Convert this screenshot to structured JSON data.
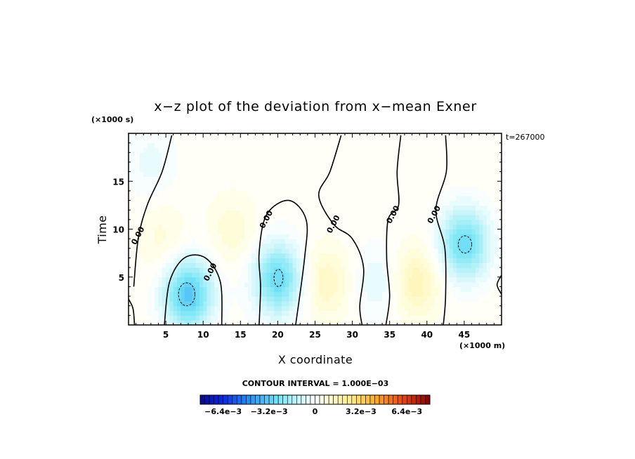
{
  "chart_data": {
    "type": "heatmap",
    "title": "x−z plot of the deviation from x−mean Exner",
    "xlabel": "X coordinate",
    "ylabel": "Time",
    "x_unit_label": "(×1000 m)",
    "y_unit_label": "(×1000 s)",
    "time_stamp": "t=267000",
    "xlim": [
      0,
      50
    ],
    "ylim": [
      0,
      20
    ],
    "x_ticks": [
      5,
      10,
      15,
      20,
      25,
      30,
      35,
      40,
      45
    ],
    "y_ticks": [
      5,
      10,
      15
    ],
    "contour_interval_text": "CONTOUR INTERVAL = 1.000E−03",
    "contour_label": "0.00",
    "colorbar": {
      "min": -0.008,
      "max": 0.008,
      "bins": 50,
      "tick_labels": [
        "−6.4e−3",
        "−3.2e−3",
        "0",
        "3.2e−3",
        "6.4e−3"
      ],
      "tick_values": [
        -0.0064,
        -0.0032,
        0,
        0.0032,
        0.0064
      ]
    },
    "features": [
      {
        "kind": "min",
        "x": 8,
        "y": 3.2,
        "value": -0.0035
      },
      {
        "kind": "min",
        "x": 20,
        "y": 4.8,
        "value": -0.003
      },
      {
        "kind": "min",
        "x": 45,
        "y": 8.5,
        "value": -0.003
      },
      {
        "kind": "min",
        "x": 33.5,
        "y": 4.5,
        "value": -0.0008
      },
      {
        "kind": "min",
        "x": 3,
        "y": 17,
        "value": -0.0006
      },
      {
        "kind": "max",
        "x": 26.5,
        "y": 4.5,
        "value": 0.0011
      },
      {
        "kind": "max",
        "x": 38.5,
        "y": 4.5,
        "value": 0.0014
      },
      {
        "kind": "max",
        "x": 14,
        "y": 10,
        "value": 0.0007
      },
      {
        "kind": "max",
        "x": 4.5,
        "y": 9,
        "value": 0.0006
      }
    ],
    "zero_contours": [
      {
        "points": [
          [
            5.8,
            19.8
          ],
          [
            4.5,
            16
          ],
          [
            2.5,
            12.5
          ],
          [
            1.3,
            9
          ],
          [
            0.7,
            4
          ]
        ],
        "label_at": [
          1.3,
          9.3
        ]
      },
      {
        "points": [
          [
            4.8,
            0
          ],
          [
            5.5,
            4.5
          ],
          [
            7.5,
            7
          ],
          [
            10.3,
            7
          ],
          [
            12.3,
            4.5
          ],
          [
            12.5,
            0
          ]
        ],
        "label_at": [
          11,
          5.5
        ]
      },
      {
        "points": [
          [
            17.5,
            0
          ],
          [
            17.7,
            4
          ],
          [
            17.5,
            7.5
          ],
          [
            18.5,
            11.5
          ],
          [
            21.5,
            13
          ],
          [
            23.8,
            11
          ],
          [
            23.6,
            7
          ],
          [
            22.4,
            0
          ]
        ],
        "label_at": [
          18.5,
          11
        ]
      },
      {
        "points": [
          [
            28.5,
            19.8
          ],
          [
            27,
            16
          ],
          [
            25.5,
            13.5
          ],
          [
            27.5,
            10.5
          ],
          [
            30,
            9
          ],
          [
            31.5,
            6
          ],
          [
            31,
            2
          ],
          [
            31.3,
            0
          ]
        ],
        "label_at": [
          27.5,
          10.5
        ]
      },
      {
        "points": [
          [
            36.5,
            19.8
          ],
          [
            36,
            16
          ],
          [
            36.2,
            12.5
          ],
          [
            34.8,
            11
          ],
          [
            34.6,
            7
          ],
          [
            35,
            3
          ],
          [
            34.5,
            0
          ]
        ],
        "label_at": [
          35.5,
          11.5
        ]
      },
      {
        "points": [
          [
            42.5,
            19.8
          ],
          [
            42.6,
            16
          ],
          [
            41.2,
            12
          ],
          [
            42.4,
            8
          ],
          [
            42.5,
            3
          ],
          [
            42.2,
            0
          ]
        ],
        "label_at": [
          41,
          11.5
        ]
      },
      {
        "points": [
          [
            0,
            2.7
          ],
          [
            0.6,
            1.7
          ],
          [
            0.8,
            0
          ]
        ],
        "label_at": null
      },
      {
        "points": [
          [
            50,
            5.2
          ],
          [
            49.4,
            4.2
          ],
          [
            50,
            3.2
          ]
        ],
        "label_at": null
      }
    ],
    "neg_contours": [
      {
        "cx": 7.8,
        "cy": 3.2,
        "rx": 1.1,
        "ry": 1.2
      },
      {
        "cx": 20.1,
        "cy": 4.9,
        "rx": 0.6,
        "ry": 0.9
      },
      {
        "cx": 45.1,
        "cy": 8.4,
        "rx": 0.9,
        "ry": 0.9
      }
    ]
  }
}
